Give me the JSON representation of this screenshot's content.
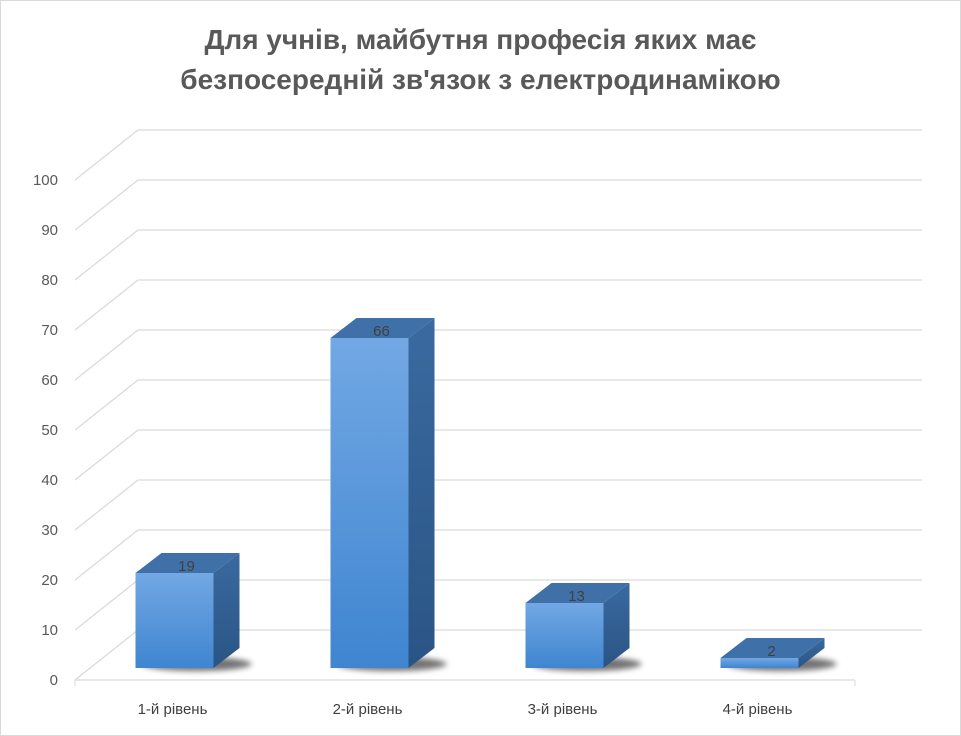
{
  "chart_data": {
    "type": "bar",
    "title_line1": "Для учнів, майбутня професія яких має",
    "title_line2": "безпосередній зв'язок з електродинамікою",
    "categories": [
      "1-й рівень",
      "2-й рівень",
      "3-й рівень",
      "4-й рівень"
    ],
    "values": [
      19,
      66,
      13,
      2
    ],
    "ylim": [
      0,
      100
    ],
    "yticks": [
      "0",
      "10",
      "20",
      "30",
      "40",
      "50",
      "60",
      "70",
      "80",
      "90",
      "100"
    ],
    "grid": true,
    "legend": "none",
    "colors": {
      "bar": "#4a8fd6",
      "bar_side": "#2e5f95",
      "bar_top": "#3f70a8",
      "grid": "#d9d9d9",
      "text": "#595959"
    }
  }
}
